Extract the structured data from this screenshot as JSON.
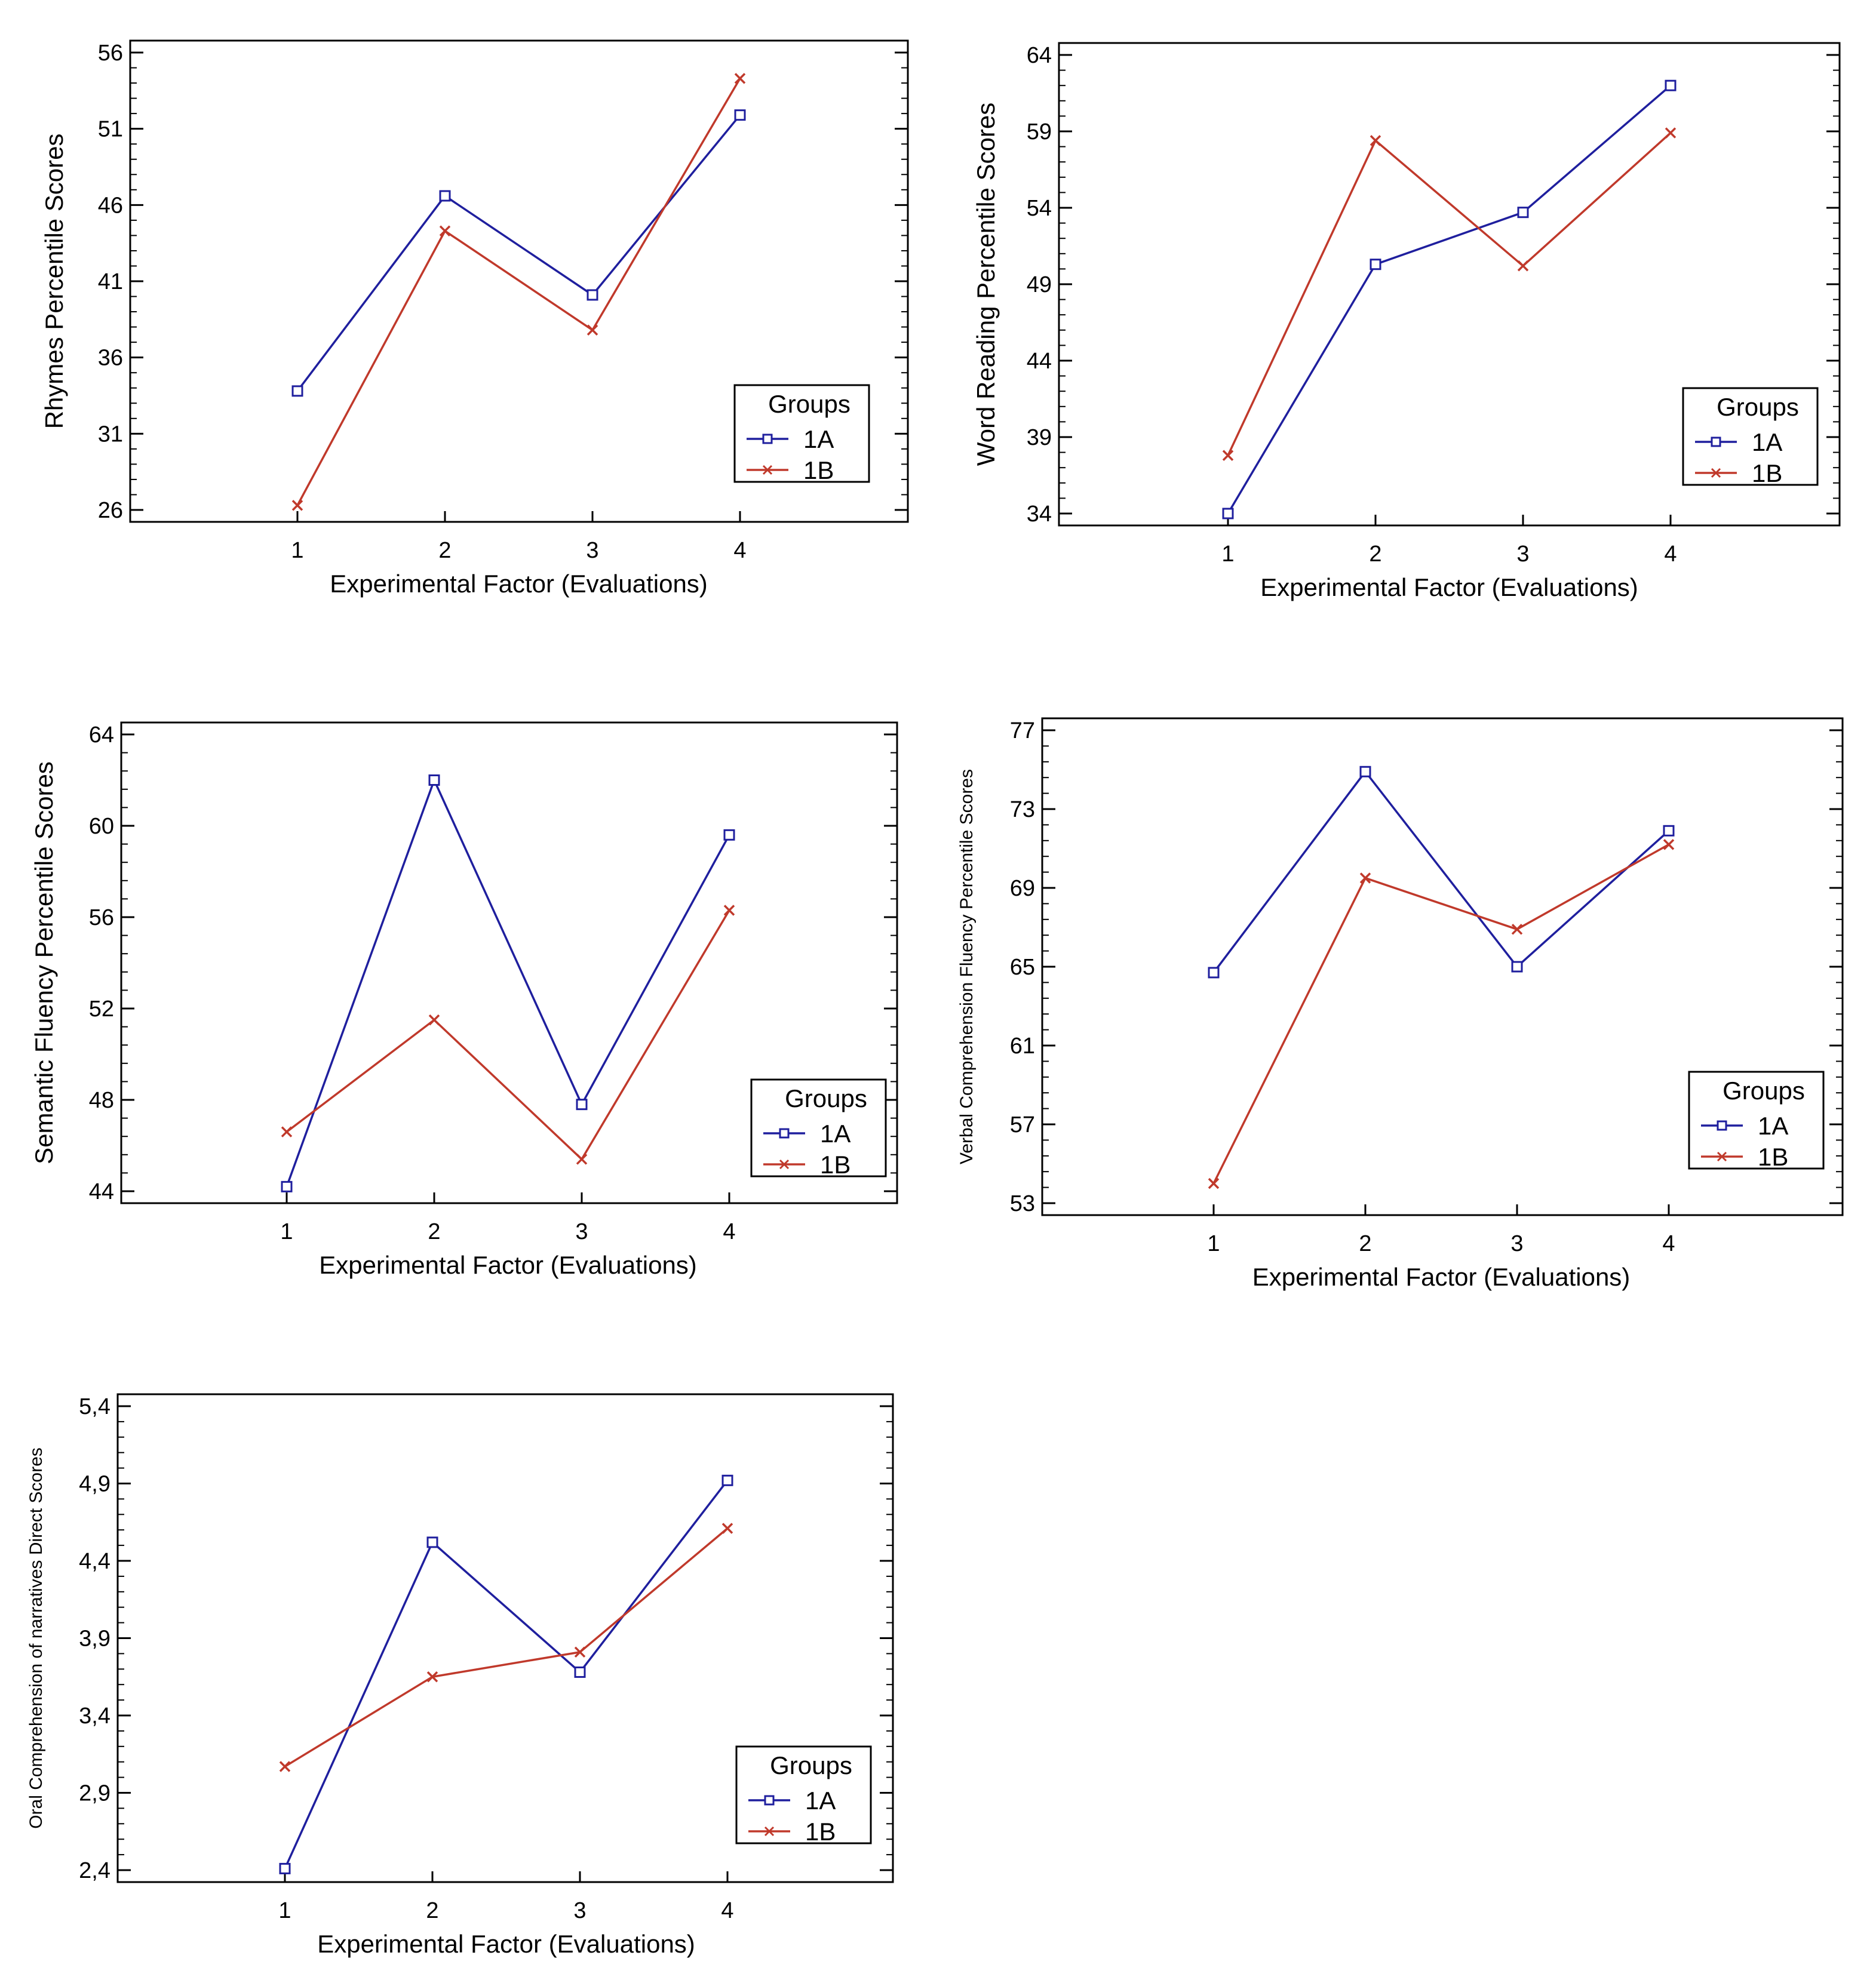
{
  "chart_data": [
    {
      "type": "line",
      "xlabel": "Experimental Factor (Evaluations)",
      "ylabel": "Rhymes Percentile Scores",
      "categories": [
        "1",
        "2",
        "3",
        "4"
      ],
      "ylim": [
        26,
        56
      ],
      "yticks": [
        "26",
        "31",
        "36",
        "41",
        "46",
        "51",
        "56"
      ],
      "legend": {
        "title": "Groups",
        "position": "lower-right"
      },
      "series": [
        {
          "name": "1A",
          "color": "#1f1f9e",
          "marker": "square",
          "values": [
            33.8,
            46.6,
            40.1,
            51.9
          ]
        },
        {
          "name": "1B",
          "color": "#c0392b",
          "marker": "x",
          "values": [
            26.3,
            44.3,
            37.8,
            54.3
          ]
        }
      ]
    },
    {
      "type": "line",
      "xlabel": "Experimental Factor (Evaluations)",
      "ylabel": "Word Reading Percentile Scores",
      "categories": [
        "1",
        "2",
        "3",
        "4"
      ],
      "ylim": [
        34,
        64
      ],
      "yticks": [
        "34",
        "39",
        "44",
        "49",
        "54",
        "59",
        "64"
      ],
      "legend": {
        "title": "Groups",
        "position": "lower-right"
      },
      "series": [
        {
          "name": "1A",
          "color": "#1f1f9e",
          "marker": "square",
          "values": [
            34.0,
            50.3,
            53.7,
            62.0
          ]
        },
        {
          "name": "1B",
          "color": "#c0392b",
          "marker": "x",
          "values": [
            37.8,
            58.4,
            50.2,
            58.9
          ]
        }
      ]
    },
    {
      "type": "line",
      "xlabel": "Experimental Factor (Evaluations)",
      "ylabel": "Semantic Fluency Percentile Scores",
      "categories": [
        "1",
        "2",
        "3",
        "4"
      ],
      "ylim": [
        44,
        64
      ],
      "yticks": [
        "44",
        "48",
        "52",
        "56",
        "60",
        "64"
      ],
      "legend": {
        "title": "Groups",
        "position": "lower-right"
      },
      "series": [
        {
          "name": "1A",
          "color": "#1f1f9e",
          "marker": "square",
          "values": [
            44.2,
            62.0,
            47.8,
            59.6
          ]
        },
        {
          "name": "1B",
          "color": "#c0392b",
          "marker": "x",
          "values": [
            46.6,
            51.5,
            45.4,
            56.3
          ]
        }
      ]
    },
    {
      "type": "line",
      "xlabel": "Experimental Factor (Evaluations)",
      "ylabel": "Verbal Comprehension Fluency Percentile Scores",
      "categories": [
        "1",
        "2",
        "3",
        "4"
      ],
      "ylim": [
        53,
        77
      ],
      "yticks": [
        "53",
        "57",
        "61",
        "65",
        "69",
        "73",
        "77"
      ],
      "legend": {
        "title": "Groups",
        "position": "lower-right"
      },
      "series": [
        {
          "name": "1A",
          "color": "#1f1f9e",
          "marker": "square",
          "values": [
            64.7,
            74.9,
            65.0,
            71.9
          ]
        },
        {
          "name": "1B",
          "color": "#c0392b",
          "marker": "x",
          "values": [
            54.0,
            69.5,
            66.9,
            71.2
          ]
        }
      ]
    },
    {
      "type": "line",
      "xlabel": "Experimental Factor (Evaluations)",
      "ylabel": "Oral Comprehension of narratives Direct Scores",
      "categories": [
        "1",
        "2",
        "3",
        "4"
      ],
      "ylim": [
        2.4,
        5.4
      ],
      "yticks": [
        "2,4",
        "2,9",
        "3,4",
        "3,9",
        "4,4",
        "4,9",
        "5,4"
      ],
      "legend": {
        "title": "Groups",
        "position": "lower-right"
      },
      "series": [
        {
          "name": "1A",
          "color": "#1f1f9e",
          "marker": "square",
          "values": [
            2.41,
            4.52,
            3.68,
            4.92
          ]
        },
        {
          "name": "1B",
          "color": "#c0392b",
          "marker": "x",
          "values": [
            3.07,
            3.65,
            3.81,
            4.61
          ]
        }
      ]
    }
  ]
}
